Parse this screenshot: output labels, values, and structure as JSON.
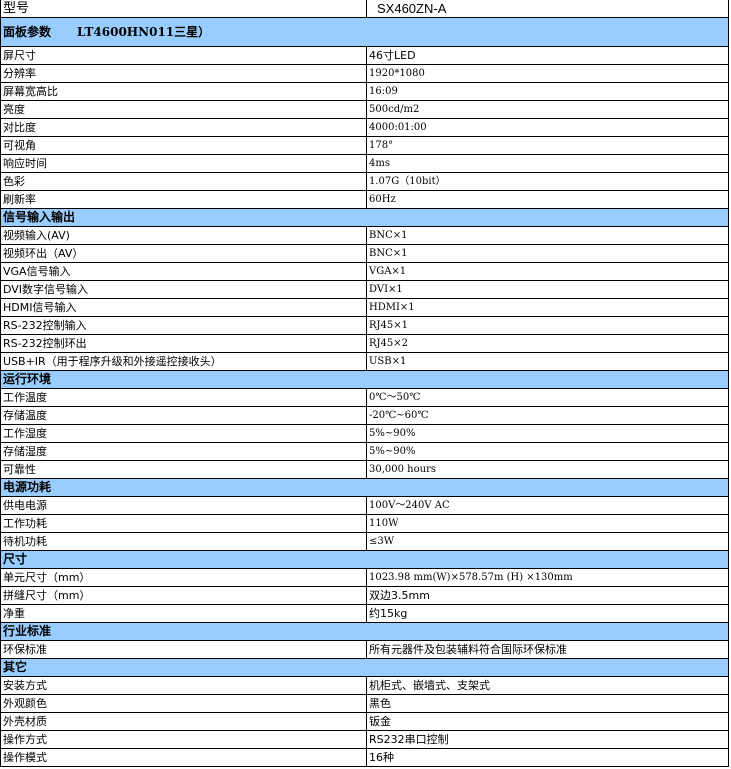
{
  "model": {
    "label": "型号",
    "value": "SX460ZN-A"
  },
  "accent_color": "#99ccff",
  "sections": [
    {
      "title": "面板参数",
      "subtitle": "LT4600HN011三星）",
      "rows": [
        {
          "k": "屏尺寸",
          "v": "46寸LED"
        },
        {
          "k": "分辨率",
          "v": "1920*1080"
        },
        {
          "k": "屏幕宽高比",
          "v": "16:09"
        },
        {
          "k": "亮度",
          "v": "500cd/m2"
        },
        {
          "k": "对比度",
          "v": "4000:01:00"
        },
        {
          "k": "可视角",
          "v": "178°"
        },
        {
          "k": "响应时间",
          "v": "4ms"
        },
        {
          "k": "色彩",
          "v": "1.07G（10bit）"
        },
        {
          "k": "刷新率",
          "v": "60Hz"
        }
      ]
    },
    {
      "title": "信号输入输出",
      "rows": [
        {
          "k": "视频输入(AV)",
          "v": "BNC×1"
        },
        {
          "k": "视频环出（AV）",
          "v": "BNC×1"
        },
        {
          "k": "VGA信号输入",
          "v": "VGA×1"
        },
        {
          "k": "DVI数字信号输入",
          "v": "DVI×1"
        },
        {
          "k": "HDMI信号输入",
          "v": "HDMI×1"
        },
        {
          "k": "RS-232控制输入",
          "v": "RJ45×1"
        },
        {
          "k": "RS-232控制环出",
          "v": "RJ45×2"
        },
        {
          "k": "USB+IR（用于程序升级和外接遥控接收头）",
          "v": "USB×1"
        }
      ]
    },
    {
      "title": "运行环境",
      "rows": [
        {
          "k": "工作温度",
          "v": "0℃～50℃"
        },
        {
          "k": "存储温度",
          "v": "-20℃~60℃"
        },
        {
          "k": "工作湿度",
          "v": "5%~90%"
        },
        {
          "k": "存储湿度",
          "v": "5%~90%"
        },
        {
          "k": "可靠性",
          "v": "30,000 hours"
        }
      ]
    },
    {
      "title": "电源功耗",
      "rows": [
        {
          "k": "供电电源",
          "v": "100V～240V AC"
        },
        {
          "k": "工作功耗",
          "v": "110W"
        },
        {
          "k": "待机功耗",
          "v": "≤3W"
        }
      ]
    },
    {
      "title": "尺寸",
      "rows": [
        {
          "k": "单元尺寸（mm）",
          "v": "1023.98 mm(W)×578.57m (H) ×130mm"
        },
        {
          "k": "拼缝尺寸（mm）",
          "v": "双边3.5mm"
        },
        {
          "k": "净重",
          "v": "约15kg"
        }
      ]
    },
    {
      "title": "行业标准",
      "rows": [
        {
          "k": "环保标准",
          "v": "所有元器件及包装辅料符合国际环保标准"
        }
      ]
    },
    {
      "title": "其它",
      "rows": [
        {
          "k": "安装方式",
          "v": "机柜式、嵌墙式、支架式"
        },
        {
          "k": "外观颜色",
          "v": "黑色"
        },
        {
          "k": "外壳材质",
          "v": "钣金"
        },
        {
          "k": "操作方式",
          "v": "RS232串口控制"
        },
        {
          "k": " 操作模式",
          "v": "16种"
        }
      ]
    }
  ]
}
